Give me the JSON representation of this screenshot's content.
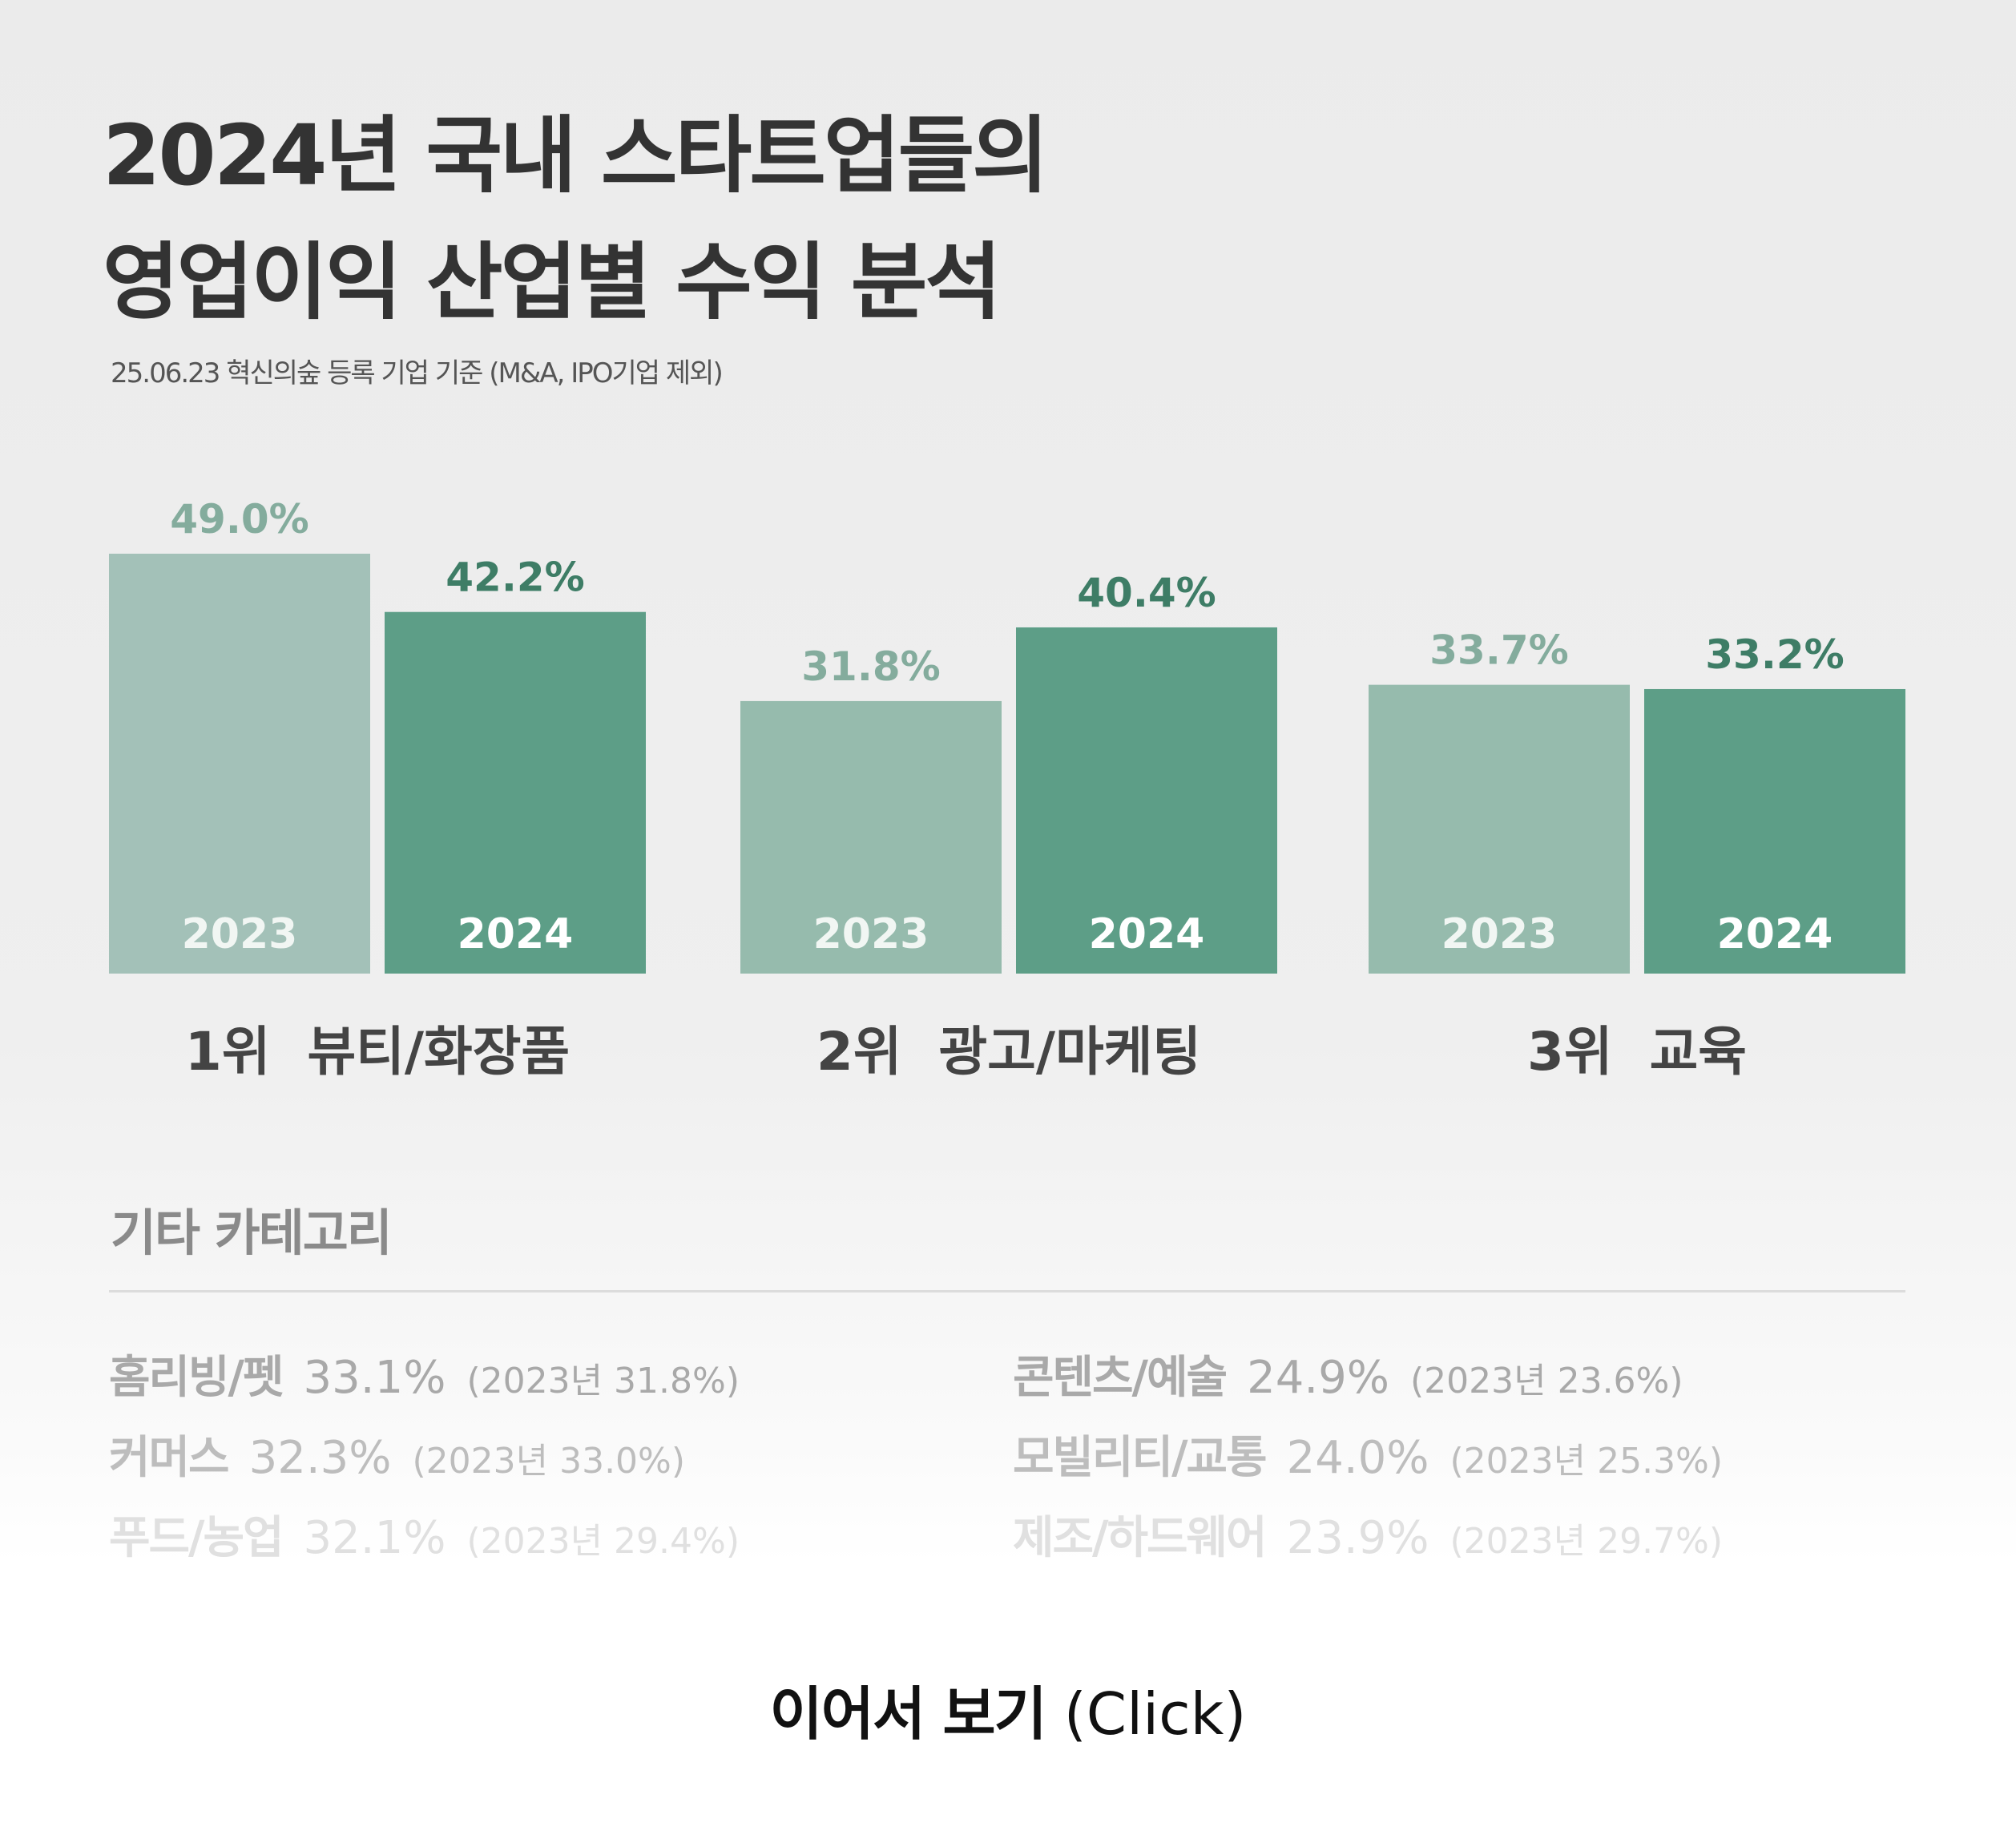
{
  "header": {
    "title_line1": "2024년 국내 스타트업들의",
    "title_line2": "영업이익 산업별 수익 분석",
    "subtitle": "25.06.23 혁신의숲 등록 기업 기준 (M&A, IPO기업 제외)"
  },
  "chart_data": {
    "type": "bar",
    "categories": [
      "1위  뷰티/화장품",
      "2위  광고/마케팅",
      "3위  교육"
    ],
    "series": [
      {
        "name": "2023",
        "values": [
          49.0,
          31.8,
          33.7
        ],
        "labels": [
          "49.0%",
          "31.8%",
          "33.7%"
        ]
      },
      {
        "name": "2024",
        "values": [
          42.2,
          40.4,
          33.2
        ],
        "labels": [
          "42.2%",
          "40.4%",
          "33.2%"
        ]
      }
    ],
    "unit": "%",
    "colors": {
      "bar_2023_cat1": "#a3c1b8",
      "bar_2023": "#96bbad",
      "bar_2024": "#5d9e87",
      "label_2023": "#84ac9d",
      "label_2024": "#3e7d66",
      "year_text_2023": "#f1f6f3",
      "year_text_2024": "#ffffff",
      "category_text": "#444444"
    },
    "ylim": [
      0,
      49.0
    ],
    "grid": false,
    "legend": "none"
  },
  "others": {
    "title": "기타 카테고리",
    "items": [
      {
        "name": "홈리빙/펫",
        "value": "33.1%",
        "prev": "(2023년 31.8%)"
      },
      {
        "name": "커머스",
        "value": "32.3%",
        "prev": "(2023년 33.0%)"
      },
      {
        "name": "푸드/농업",
        "value": "32.1%",
        "prev": "(2023년 29.4%)"
      },
      {
        "name": "콘텐츠/예술",
        "value": "24.9%",
        "prev": "(2023년 23.6%)"
      },
      {
        "name": "모빌리티/교통",
        "value": "24.0%",
        "prev": "(2023년 25.3%)"
      },
      {
        "name": "제조/하드웨어",
        "value": "23.9%",
        "prev": "(2023년 29.7%)"
      }
    ],
    "row_colors": [
      "#a9a9a9",
      "#bdbdbd",
      "#e0e0e0"
    ]
  },
  "footer": {
    "more_label": "이어서 보기",
    "more_suffix": "(Click)"
  }
}
